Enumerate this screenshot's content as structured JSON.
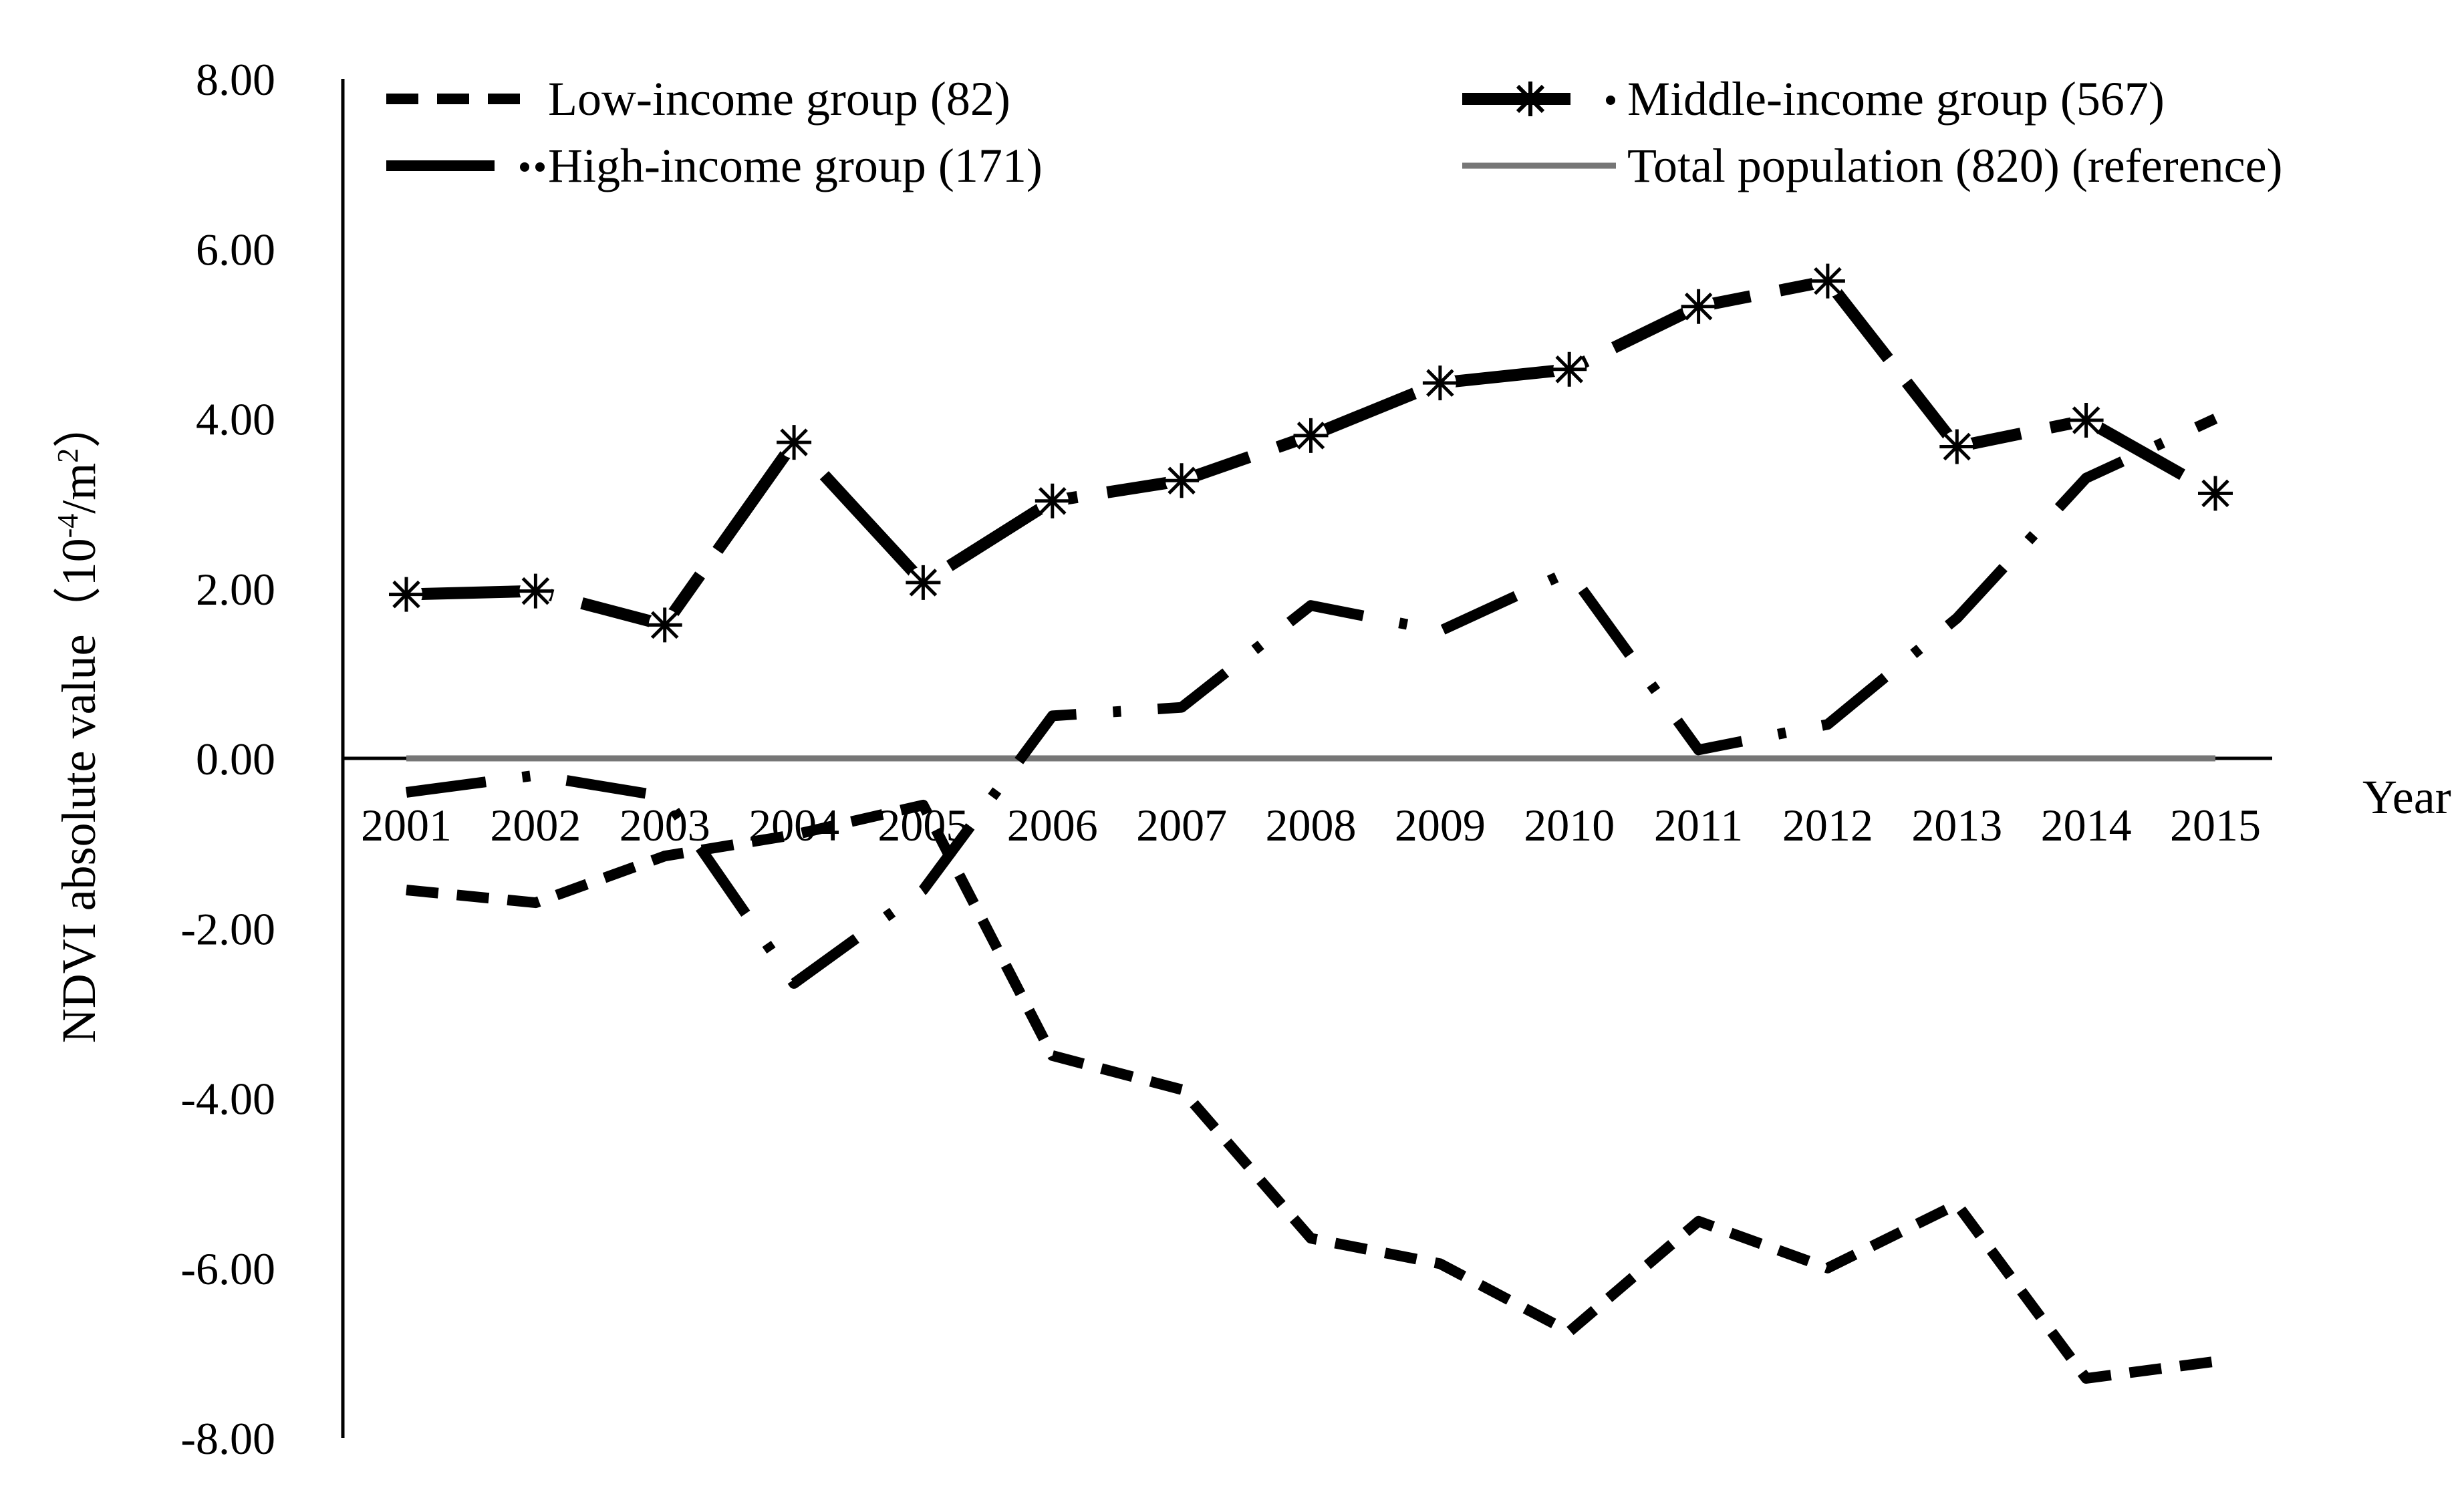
{
  "chart_data": {
    "type": "line",
    "title": "",
    "ylabel_main": "NDVI absolute value",
    "ylabel_unit_prefix": "（10",
    "ylabel_unit_exp1": "-4",
    "ylabel_unit_mid": "/m",
    "ylabel_unit_exp2": "2",
    "ylabel_unit_suffix": "）",
    "xlabel": "Year",
    "ylim": [
      -8,
      8
    ],
    "yticks": [
      8,
      6,
      4,
      2,
      0,
      -2,
      -4,
      -6,
      -8
    ],
    "ytick_labels": [
      "8.00",
      "6.00",
      "4.00",
      "2.00",
      "0.00",
      "-2.00",
      "-4.00",
      "-6.00",
      "-8.00"
    ],
    "categories": [
      "2001",
      "2002",
      "2003",
      "2004",
      "2005",
      "2006",
      "2007",
      "2008",
      "2009",
      "2010",
      "2011",
      "2012",
      "2013",
      "2014",
      "2015"
    ],
    "series": [
      {
        "key": "low",
        "name": "Low-income group (82)",
        "style": "dashed",
        "values": [
          -1.55,
          -1.7,
          -1.15,
          -0.9,
          -0.55,
          -3.5,
          -3.9,
          -5.65,
          -5.95,
          -6.75,
          -5.45,
          -6.0,
          -5.25,
          -7.3,
          -7.1
        ]
      },
      {
        "key": "middle",
        "name": "Middle-income group (567)",
        "style": "long-dash-asterisk",
        "values": [
          1.93,
          1.97,
          1.57,
          3.72,
          2.07,
          3.03,
          3.27,
          3.8,
          4.42,
          4.58,
          5.32,
          5.62,
          3.67,
          3.98,
          3.12
        ]
      },
      {
        "key": "high",
        "name": "High-income group (171)",
        "style": "dash-dot",
        "values": [
          -0.4,
          -0.2,
          -0.45,
          -2.65,
          -1.55,
          0.5,
          0.6,
          1.8,
          1.5,
          2.2,
          0.1,
          0.4,
          1.65,
          3.3,
          4.0
        ]
      },
      {
        "key": "total",
        "name": "Total population (820) (reference)",
        "style": "solid-gray",
        "values": [
          0,
          0,
          0,
          0,
          0,
          0,
          0,
          0,
          0,
          0,
          0,
          0,
          0,
          0,
          0
        ]
      }
    ],
    "legend": "top",
    "grid": false
  }
}
